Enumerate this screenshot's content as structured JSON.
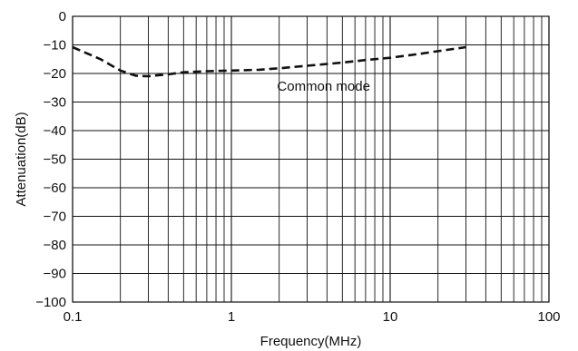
{
  "chart_data": {
    "type": "line",
    "title": "",
    "xlabel": "Frequency(MHz)",
    "ylabel": "Attenuation(dB)",
    "xscale": "log",
    "xlim": [
      0.1,
      100
    ],
    "ylim": [
      -100,
      0
    ],
    "grid": true,
    "x_ticks": [
      0.1,
      1,
      10,
      100
    ],
    "x_tick_labels": [
      "0.1",
      "1",
      "10",
      "100"
    ],
    "y_ticks": [
      0,
      -10,
      -20,
      -30,
      -40,
      -50,
      -60,
      -70,
      -80,
      -90,
      -100
    ],
    "y_tick_labels": [
      "0",
      "−10",
      "−20",
      "−30",
      "−40",
      "−50",
      "−60",
      "−70",
      "−80",
      "−90",
      "−100"
    ],
    "series": [
      {
        "line_style": "dashed",
        "color": "#111111",
        "x": [
          0.1,
          0.15,
          0.2,
          0.25,
          0.3,
          0.4,
          0.5,
          0.7,
          1,
          1.5,
          2,
          3,
          5,
          7,
          10,
          15,
          20,
          30
        ],
        "y": [
          -10.8,
          -15.0,
          -19.0,
          -20.8,
          -21.0,
          -20.3,
          -19.6,
          -19.2,
          -19.0,
          -18.7,
          -18.2,
          -17.3,
          -16.2,
          -15.3,
          -14.5,
          -13.2,
          -12.2,
          -10.8
        ]
      }
    ],
    "annotations": [
      {
        "text": "Common mode",
        "x": 3.2,
        "y": -24.5
      }
    ]
  }
}
